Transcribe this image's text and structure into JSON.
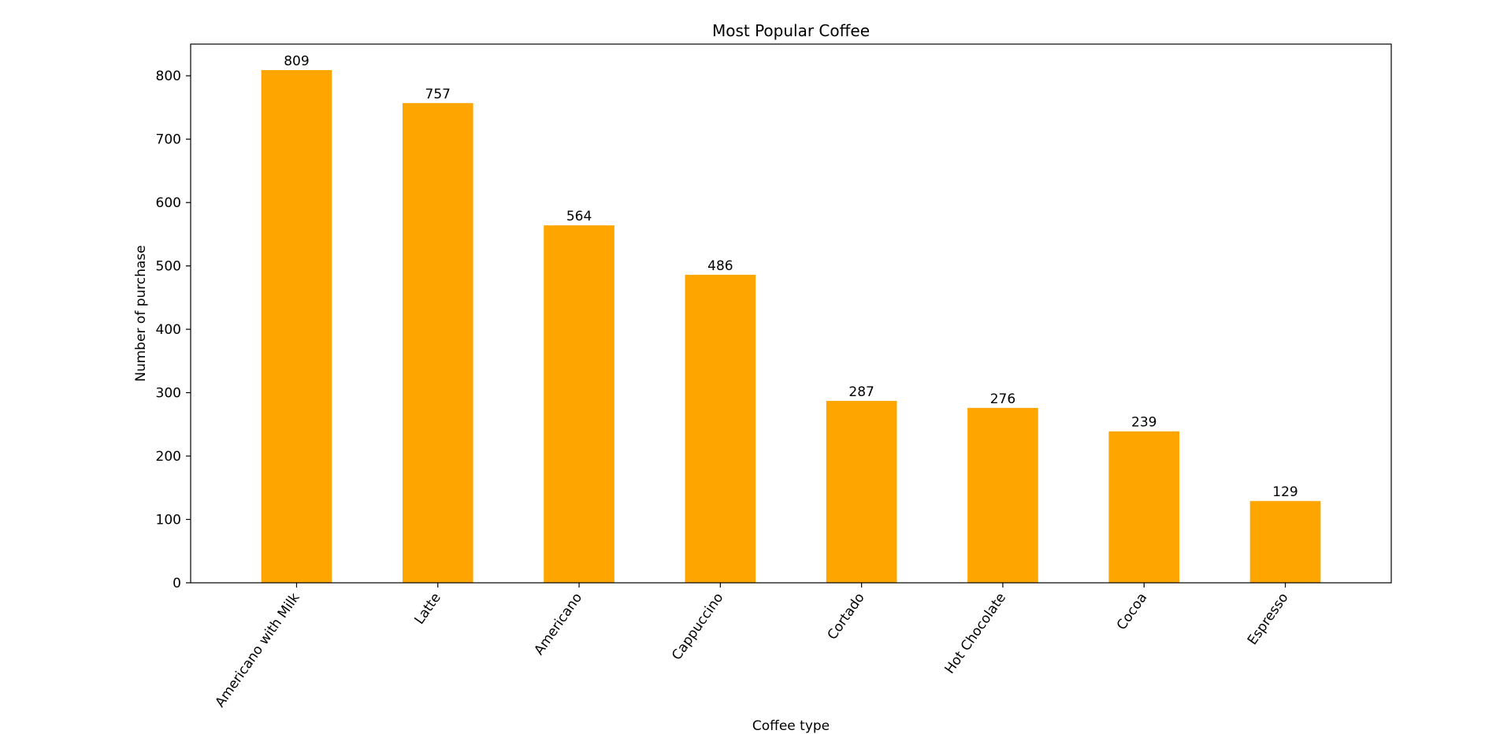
{
  "chart_data": {
    "type": "bar",
    "title": "Most Popular Coffee",
    "xlabel": "Coffee type",
    "ylabel": "Number of purchase",
    "categories": [
      "Americano with Milk",
      "Latte",
      "Americano",
      "Cappuccino",
      "Cortado",
      "Hot Chocolate",
      "Cocoa",
      "Espresso"
    ],
    "values": [
      809,
      757,
      564,
      486,
      287,
      276,
      239,
      129
    ],
    "ylim": [
      0,
      850
    ],
    "yticks": [
      0,
      100,
      200,
      300,
      400,
      500,
      600,
      700,
      800
    ],
    "bar_color": "#FFA500",
    "grid": false,
    "legend": false,
    "data_labels": true,
    "xtick_rotation": "-55 degrees"
  }
}
